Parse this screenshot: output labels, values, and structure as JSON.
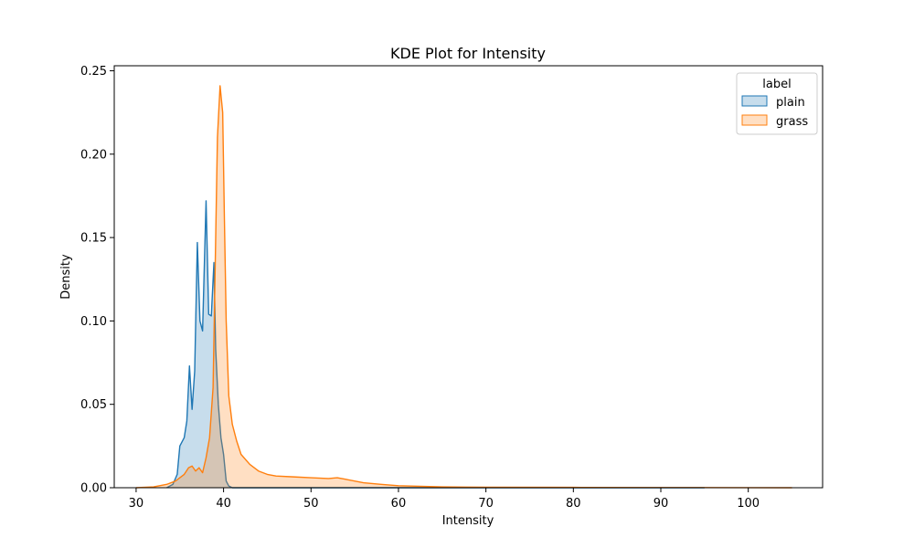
{
  "chart_data": {
    "type": "area",
    "title": "KDE Plot for Intensity",
    "xlabel": "Intensity",
    "ylabel": "Density",
    "xlim": [
      27.5,
      108.5
    ],
    "ylim": [
      0,
      0.253
    ],
    "xticks": [
      30,
      40,
      50,
      60,
      70,
      80,
      90,
      100
    ],
    "yticks": [
      0.0,
      0.05,
      0.1,
      0.15,
      0.2,
      0.25
    ],
    "ytick_labels": [
      "0.00",
      "0.05",
      "0.10",
      "0.15",
      "0.20",
      "0.25"
    ],
    "grid": false,
    "legend": {
      "title": "label",
      "position": "top-right"
    },
    "series": [
      {
        "name": "plain",
        "color": "#1f77b4",
        "fill": "#1f77b4",
        "fill_opacity": 0.25,
        "points": [
          [
            33.5,
            0.0
          ],
          [
            34.2,
            0.002
          ],
          [
            34.7,
            0.008
          ],
          [
            35.0,
            0.025
          ],
          [
            35.5,
            0.03
          ],
          [
            35.8,
            0.04
          ],
          [
            36.1,
            0.073
          ],
          [
            36.4,
            0.047
          ],
          [
            36.7,
            0.07
          ],
          [
            37.0,
            0.147
          ],
          [
            37.3,
            0.1
          ],
          [
            37.6,
            0.094
          ],
          [
            38.0,
            0.172
          ],
          [
            38.3,
            0.104
          ],
          [
            38.6,
            0.103
          ],
          [
            38.9,
            0.135
          ],
          [
            39.1,
            0.083
          ],
          [
            39.4,
            0.05
          ],
          [
            39.7,
            0.03
          ],
          [
            40.0,
            0.02
          ],
          [
            40.3,
            0.004
          ],
          [
            40.6,
            0.001
          ],
          [
            41.0,
            0.0
          ],
          [
            60.0,
            0.0
          ],
          [
            80.0,
            0.0
          ],
          [
            95.0,
            0.0
          ]
        ]
      },
      {
        "name": "grass",
        "color": "#ff7f0e",
        "fill": "#ff7f0e",
        "fill_opacity": 0.25,
        "points": [
          [
            30.0,
            0.0
          ],
          [
            32.0,
            0.0005
          ],
          [
            33.5,
            0.002
          ],
          [
            34.5,
            0.004
          ],
          [
            35.5,
            0.008
          ],
          [
            36.0,
            0.012
          ],
          [
            36.4,
            0.013
          ],
          [
            36.8,
            0.01
          ],
          [
            37.2,
            0.012
          ],
          [
            37.6,
            0.009
          ],
          [
            38.0,
            0.018
          ],
          [
            38.4,
            0.03
          ],
          [
            38.8,
            0.06
          ],
          [
            39.1,
            0.15
          ],
          [
            39.3,
            0.21
          ],
          [
            39.6,
            0.241
          ],
          [
            39.9,
            0.225
          ],
          [
            40.1,
            0.16
          ],
          [
            40.3,
            0.1
          ],
          [
            40.6,
            0.055
          ],
          [
            41.0,
            0.038
          ],
          [
            41.5,
            0.028
          ],
          [
            42.0,
            0.02
          ],
          [
            43.0,
            0.014
          ],
          [
            44.0,
            0.01
          ],
          [
            45.0,
            0.008
          ],
          [
            46.0,
            0.007
          ],
          [
            48.0,
            0.0065
          ],
          [
            50.0,
            0.006
          ],
          [
            52.0,
            0.0055
          ],
          [
            53.0,
            0.006
          ],
          [
            54.0,
            0.005
          ],
          [
            56.0,
            0.003
          ],
          [
            58.0,
            0.002
          ],
          [
            60.0,
            0.0012
          ],
          [
            62.0,
            0.0009
          ],
          [
            65.0,
            0.0005
          ],
          [
            70.0,
            0.0003
          ],
          [
            80.0,
            0.0002
          ],
          [
            90.0,
            0.0001
          ],
          [
            100.0,
            5e-05
          ],
          [
            105.0,
            0.0
          ]
        ]
      }
    ]
  }
}
